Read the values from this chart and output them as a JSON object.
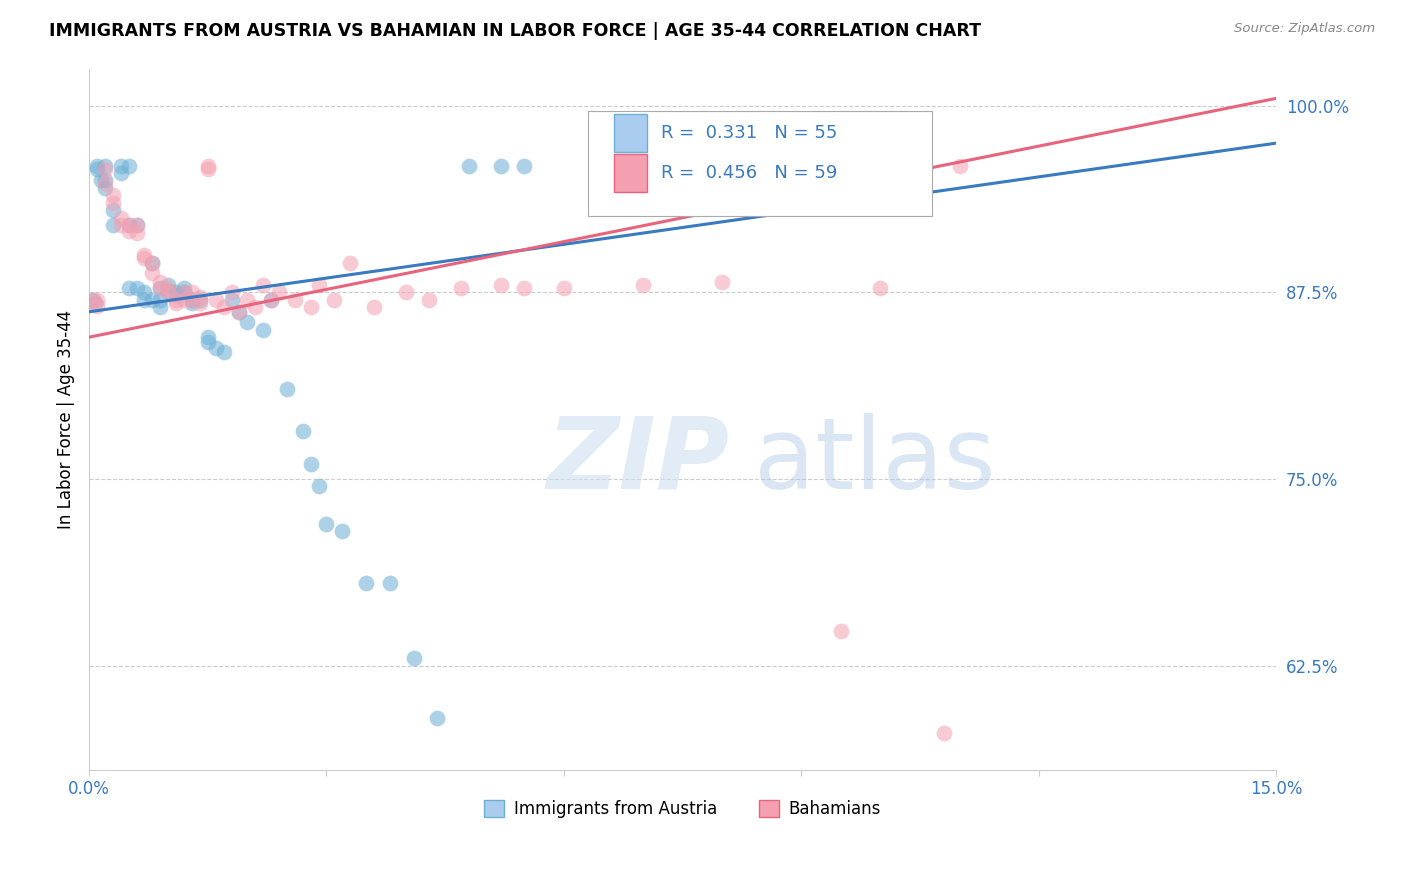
{
  "title": "IMMIGRANTS FROM AUSTRIA VS BAHAMIAN IN LABOR FORCE | AGE 35-44 CORRELATION CHART",
  "source": "Source: ZipAtlas.com",
  "ylabel": "In Labor Force | Age 35-44",
  "xlim": [
    0.0,
    0.15
  ],
  "ylim": [
    0.555,
    1.025
  ],
  "xticks": [
    0.0,
    0.03,
    0.06,
    0.09,
    0.12,
    0.15
  ],
  "xticklabels": [
    "0.0%",
    "",
    "",
    "",
    "",
    "15.0%"
  ],
  "yticks": [
    0.625,
    0.75,
    0.875,
    1.0
  ],
  "yticklabels": [
    "62.5%",
    "75.0%",
    "87.5%",
    "100.0%"
  ],
  "austria_R": 0.331,
  "austria_N": 55,
  "bahamas_R": 0.456,
  "bahamas_N": 59,
  "austria_color": "#6baed6",
  "bahamas_color": "#f4a0b0",
  "austria_line_color": "#3a7abf",
  "bahamas_line_color": "#e8637c",
  "watermark_zip": "ZIP",
  "watermark_atlas": "atlas",
  "austria_x": [
    0.0005,
    0.0008,
    0.001,
    0.001,
    0.0015,
    0.002,
    0.002,
    0.002,
    0.003,
    0.003,
    0.004,
    0.004,
    0.005,
    0.005,
    0.005,
    0.006,
    0.006,
    0.007,
    0.007,
    0.008,
    0.008,
    0.009,
    0.009,
    0.009,
    0.01,
    0.01,
    0.011,
    0.011,
    0.012,
    0.012,
    0.013,
    0.013,
    0.014,
    0.015,
    0.015,
    0.016,
    0.017,
    0.018,
    0.019,
    0.02,
    0.022,
    0.023,
    0.025,
    0.027,
    0.028,
    0.029,
    0.03,
    0.032,
    0.035,
    0.038,
    0.041,
    0.044,
    0.048,
    0.052,
    0.055
  ],
  "austria_y": [
    0.87,
    0.868,
    0.96,
    0.958,
    0.95,
    0.96,
    0.95,
    0.945,
    0.93,
    0.92,
    0.96,
    0.955,
    0.96,
    0.92,
    0.878,
    0.92,
    0.878,
    0.875,
    0.87,
    0.895,
    0.87,
    0.87,
    0.865,
    0.878,
    0.88,
    0.876,
    0.875,
    0.873,
    0.878,
    0.875,
    0.87,
    0.868,
    0.87,
    0.845,
    0.842,
    0.838,
    0.835,
    0.87,
    0.862,
    0.855,
    0.85,
    0.87,
    0.81,
    0.782,
    0.76,
    0.745,
    0.72,
    0.715,
    0.68,
    0.68,
    0.63,
    0.59,
    0.96,
    0.96,
    0.96
  ],
  "bahamas_x": [
    0.0005,
    0.001,
    0.001,
    0.002,
    0.002,
    0.003,
    0.003,
    0.004,
    0.004,
    0.005,
    0.005,
    0.006,
    0.006,
    0.007,
    0.007,
    0.008,
    0.008,
    0.009,
    0.009,
    0.01,
    0.01,
    0.011,
    0.011,
    0.012,
    0.012,
    0.013,
    0.013,
    0.014,
    0.014,
    0.015,
    0.015,
    0.016,
    0.017,
    0.018,
    0.019,
    0.02,
    0.021,
    0.022,
    0.023,
    0.024,
    0.026,
    0.028,
    0.029,
    0.031,
    0.033,
    0.036,
    0.04,
    0.043,
    0.047,
    0.052,
    0.055,
    0.06,
    0.07,
    0.08,
    0.095,
    0.1,
    0.105,
    0.108,
    0.11
  ],
  "bahamas_y": [
    0.87,
    0.87,
    0.866,
    0.958,
    0.948,
    0.94,
    0.935,
    0.925,
    0.92,
    0.92,
    0.916,
    0.92,
    0.915,
    0.9,
    0.898,
    0.895,
    0.888,
    0.882,
    0.878,
    0.878,
    0.875,
    0.87,
    0.868,
    0.875,
    0.87,
    0.875,
    0.87,
    0.872,
    0.868,
    0.96,
    0.958,
    0.87,
    0.865,
    0.875,
    0.862,
    0.87,
    0.865,
    0.88,
    0.87,
    0.875,
    0.87,
    0.865,
    0.88,
    0.87,
    0.895,
    0.865,
    0.875,
    0.87,
    0.878,
    0.88,
    0.878,
    0.878,
    0.88,
    0.882,
    0.648,
    0.878,
    0.96,
    0.58,
    0.96
  ],
  "trendline_austria": [
    0.0,
    0.15,
    0.862,
    0.975
  ],
  "trendline_bahamas": [
    0.0,
    0.15,
    0.845,
    1.005
  ]
}
